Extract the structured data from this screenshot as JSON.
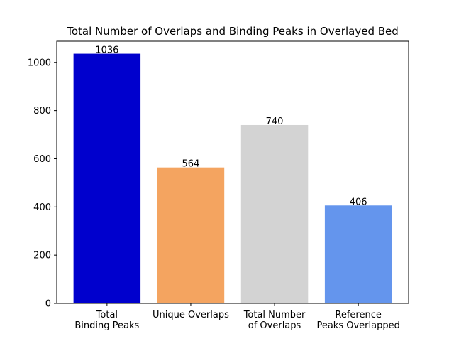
{
  "chart_data": {
    "type": "bar",
    "title": "Total Number of Overlaps and Binding Peaks in Overlayed Bed",
    "xlabel": "",
    "ylabel": "",
    "categories": [
      [
        "Total",
        "Binding Peaks"
      ],
      [
        "Unique Overlaps"
      ],
      [
        "Total Number",
        "of Overlaps"
      ],
      [
        "Reference",
        "Peaks Overlapped"
      ]
    ],
    "values": [
      1036,
      564,
      740,
      406
    ],
    "data_labels": [
      "1036",
      "564",
      "740",
      "406"
    ],
    "bar_colors": [
      "#0000cd",
      "#f4a460",
      "#d3d3d3",
      "#6495ed"
    ],
    "ylim": [
      0,
      1087.8
    ],
    "yticks": [
      0,
      200,
      400,
      600,
      800,
      1000
    ],
    "grid": false,
    "legend": "none"
  }
}
